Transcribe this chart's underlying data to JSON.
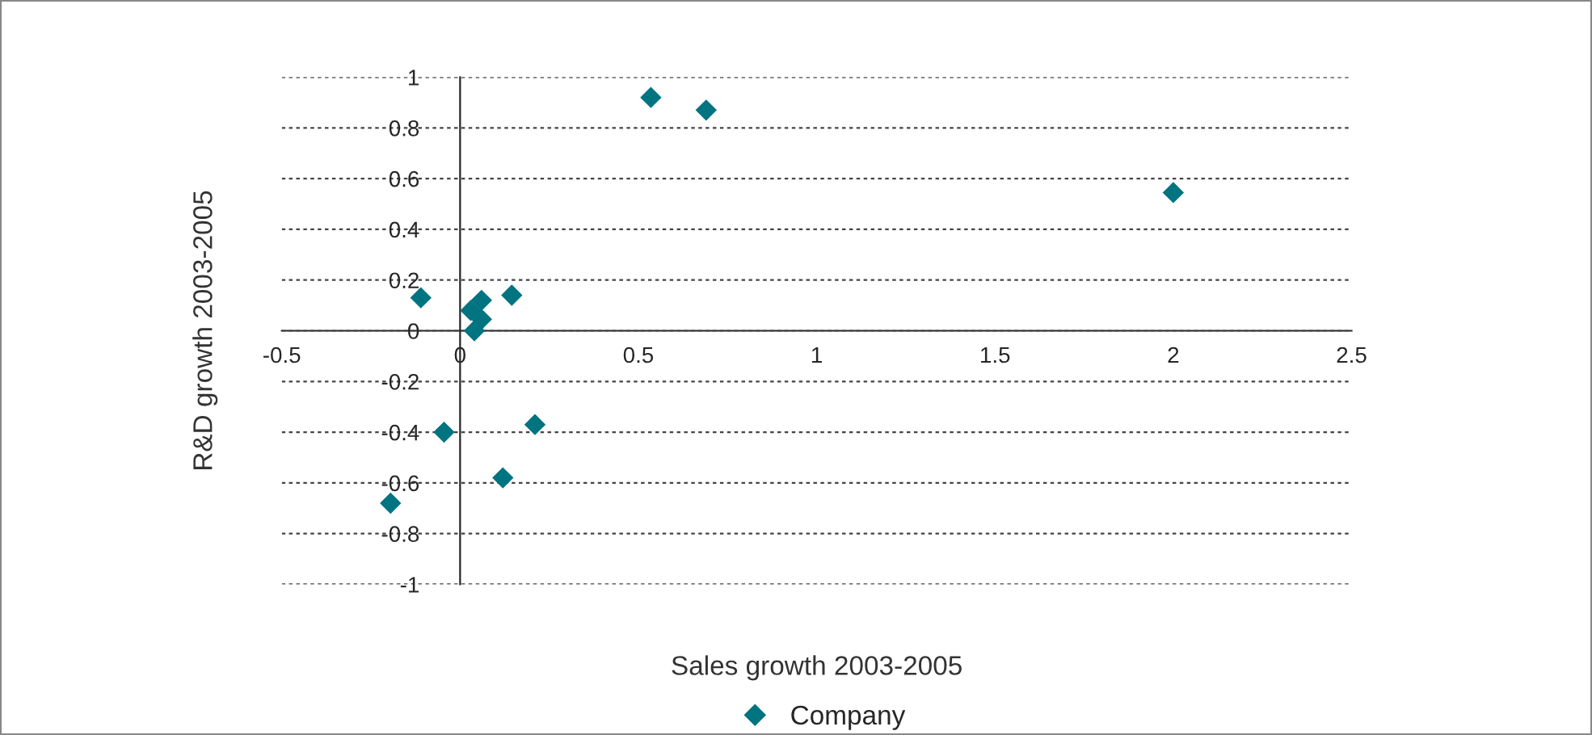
{
  "chart_data": {
    "type": "scatter",
    "xlabel": "Sales growth 2003-2005",
    "ylabel": "R&D growth 2003-2005",
    "xlim": [
      -0.5,
      2.5
    ],
    "xticks": [
      -0.5,
      0,
      0.5,
      1,
      1.5,
      2,
      2.5
    ],
    "ylim": [
      -1,
      1
    ],
    "yticks": [
      -1,
      -0.8,
      -0.6,
      -0.4,
      -0.2,
      0,
      0.2,
      0.4,
      0.6,
      0.8,
      1
    ],
    "grid": "y",
    "marker": "diamond",
    "legend": "bottom",
    "series": [
      {
        "name": "Company",
        "color": "#007480",
        "x": [
          0.535,
          0.69,
          2.0,
          -0.11,
          0.03,
          0.06,
          0.145,
          0.06,
          0.04,
          -0.045,
          0.21,
          0.12,
          -0.195
        ],
        "values": [
          0.92,
          0.87,
          0.545,
          0.13,
          0.08,
          0.12,
          0.14,
          0.045,
          0.0,
          -0.4,
          -0.37,
          -0.58,
          -0.68
        ]
      }
    ]
  }
}
